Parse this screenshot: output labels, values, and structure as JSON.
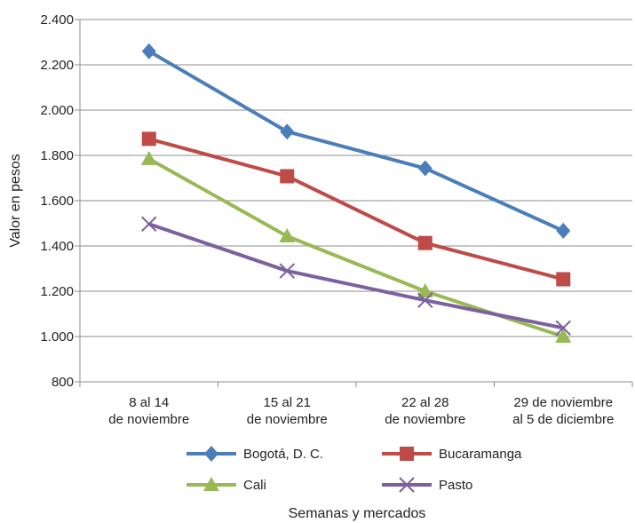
{
  "chart_data": {
    "type": "line",
    "title": "",
    "xlabel": "Semanas y mercados",
    "ylabel": "Valor en pesos",
    "ylim": [
      800,
      2400
    ],
    "yticks": [
      "800",
      "1.000",
      "1.200",
      "1.400",
      "1.600",
      "1.800",
      "2.000",
      "2.200",
      "2.400"
    ],
    "ytick_values": [
      800,
      1000,
      1200,
      1400,
      1600,
      1800,
      2000,
      2200,
      2400
    ],
    "grid": "horizontal",
    "legend_position": "bottom",
    "categories": [
      [
        "8 al 14",
        "de noviembre"
      ],
      [
        "15 al 21",
        "de noviembre"
      ],
      [
        "22 al 28",
        "de noviembre"
      ],
      [
        "29 de noviembre",
        "al 5 de diciembre"
      ]
    ],
    "series": [
      {
        "name": "Bogotá, D. C.",
        "color": "#4a7ebb",
        "marker": "diamond",
        "values": [
          2260,
          1905,
          1743,
          1467
        ]
      },
      {
        "name": "Bucaramanga",
        "color": "#be4b48",
        "marker": "square",
        "values": [
          1873,
          1708,
          1413,
          1253
        ]
      },
      {
        "name": "Cali",
        "color": "#98b954",
        "marker": "triangle",
        "values": [
          1785,
          1443,
          1200,
          1000
        ]
      },
      {
        "name": "Pasto",
        "color": "#7d60a0",
        "marker": "x",
        "values": [
          1497,
          1290,
          1160,
          1038
        ]
      }
    ]
  }
}
